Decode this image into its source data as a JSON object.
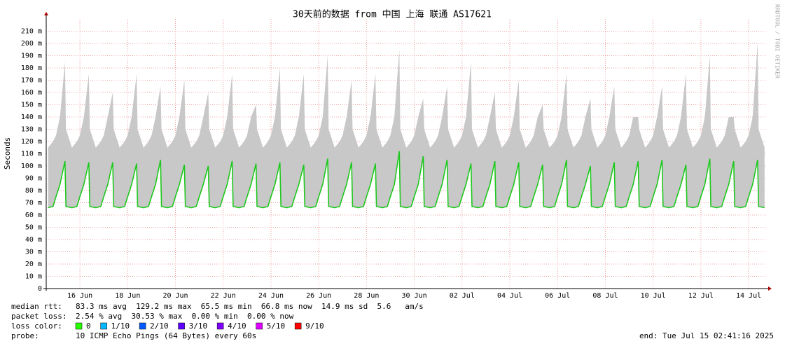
{
  "chart_data": {
    "type": "line",
    "title": "30天前的数据 from 中国 上海 联通 AS17621",
    "y_label": "Seconds",
    "side_text": "RRDTOOL / TOBI OETIKER",
    "xlim": [
      "2025-06-14 14:10",
      "2025-07-14 16:50"
    ],
    "ylim": [
      0,
      220
    ],
    "grid": true,
    "yticks": [
      0,
      {
        "value": 10,
        "label": "10 m"
      },
      {
        "value": 20,
        "label": "20 m"
      },
      {
        "value": 30,
        "label": "30 m"
      },
      {
        "value": 40,
        "label": "40 m"
      },
      {
        "value": 50,
        "label": "50 m"
      },
      {
        "value": 60,
        "label": "60 m"
      },
      {
        "value": 70,
        "label": "70 m"
      },
      {
        "value": 80,
        "label": "80 m"
      },
      {
        "value": 90,
        "label": "90 m"
      },
      {
        "value": 100,
        "label": "100 m"
      },
      {
        "value": 110,
        "label": "110 m"
      },
      {
        "value": 120,
        "label": "120 m"
      },
      {
        "value": 130,
        "label": "130 m"
      },
      {
        "value": 140,
        "label": "140 m"
      },
      {
        "value": 150,
        "label": "150 m"
      },
      {
        "value": 160,
        "label": "160 m"
      },
      {
        "value": 170,
        "label": "170 m"
      },
      {
        "value": 180,
        "label": "180 m"
      },
      {
        "value": 190,
        "label": "190 m"
      },
      {
        "value": 200,
        "label": "200 m"
      },
      {
        "value": 210,
        "label": "210 m"
      }
    ],
    "xticks": [
      {
        "value": "2025-06-16 00:00",
        "label": "16 Jun"
      },
      {
        "value": "2025-06-18 00:00",
        "label": "18 Jun"
      },
      {
        "value": "2025-06-20 00:00",
        "label": "20 Jun"
      },
      {
        "value": "2025-06-22 00:00",
        "label": "22 Jun"
      },
      {
        "value": "2025-06-24 00:00",
        "label": "24 Jun"
      },
      {
        "value": "2025-06-26 00:00",
        "label": "26 Jun"
      },
      {
        "value": "2025-06-28 00:00",
        "label": "28 Jun"
      },
      {
        "value": "2025-06-30 00:00",
        "label": "30 Jun"
      },
      {
        "value": "2025-07-02 00:00",
        "label": "02 Jul"
      },
      {
        "value": "2025-07-04 00:00",
        "label": "04 Jul"
      },
      {
        "value": "2025-07-06 00:00",
        "label": "06 Jul"
      },
      {
        "value": "2025-07-08 00:00",
        "label": "08 Jul"
      },
      {
        "value": "2025-07-10 00:00",
        "label": "10 Jul"
      },
      {
        "value": "2025-07-12 00:00",
        "label": "12 Jul"
      },
      {
        "value": "2025-07-14 00:00",
        "label": "14 Jul"
      }
    ],
    "x": [
      "2025-06-14 16:00",
      "2025-06-14 21:00",
      "2025-06-15 00:00",
      "2025-06-15 04:00",
      "2025-06-15 09:00",
      "2025-06-15 10:00",
      "2025-06-15 16:00",
      "2025-06-15 21:00",
      "2025-06-16 00:00",
      "2025-06-16 04:00",
      "2025-06-16 09:00",
      "2025-06-16 10:00",
      "2025-06-16 16:00",
      "2025-06-16 21:00",
      "2025-06-17 00:00",
      "2025-06-17 04:00",
      "2025-06-17 09:00",
      "2025-06-17 10:00",
      "2025-06-17 16:00",
      "2025-06-17 21:00",
      "2025-06-18 00:00",
      "2025-06-18 04:00",
      "2025-06-18 09:00",
      "2025-06-18 10:00",
      "2025-06-18 16:00",
      "2025-06-18 21:00",
      "2025-06-19 00:00",
      "2025-06-19 04:00",
      "2025-06-19 09:00",
      "2025-06-19 10:00",
      "2025-06-19 16:00",
      "2025-06-19 21:00",
      "2025-06-20 00:00",
      "2025-06-20 04:00",
      "2025-06-20 09:00",
      "2025-06-20 10:00",
      "2025-06-20 16:00",
      "2025-06-20 21:00",
      "2025-06-21 00:00",
      "2025-06-21 04:00",
      "2025-06-21 09:00",
      "2025-06-21 10:00",
      "2025-06-21 16:00",
      "2025-06-21 21:00",
      "2025-06-22 00:00",
      "2025-06-22 04:00",
      "2025-06-22 09:00",
      "2025-06-22 10:00",
      "2025-06-22 16:00",
      "2025-06-22 21:00",
      "2025-06-23 00:00",
      "2025-06-23 04:00",
      "2025-06-23 09:00",
      "2025-06-23 10:00",
      "2025-06-23 16:00",
      "2025-06-23 21:00",
      "2025-06-24 00:00",
      "2025-06-24 04:00",
      "2025-06-24 09:00",
      "2025-06-24 10:00",
      "2025-06-24 16:00",
      "2025-06-24 21:00",
      "2025-06-25 00:00",
      "2025-06-25 04:00",
      "2025-06-25 09:00",
      "2025-06-25 10:00",
      "2025-06-25 16:00",
      "2025-06-25 21:00",
      "2025-06-26 00:00",
      "2025-06-26 04:00",
      "2025-06-26 09:00",
      "2025-06-26 10:00",
      "2025-06-26 16:00",
      "2025-06-26 21:00",
      "2025-06-27 00:00",
      "2025-06-27 04:00",
      "2025-06-27 09:00",
      "2025-06-27 10:00",
      "2025-06-27 16:00",
      "2025-06-27 21:00",
      "2025-06-28 00:00",
      "2025-06-28 04:00",
      "2025-06-28 09:00",
      "2025-06-28 10:00",
      "2025-06-28 16:00",
      "2025-06-28 21:00",
      "2025-06-29 00:00",
      "2025-06-29 04:00",
      "2025-06-29 09:00",
      "2025-06-29 10:00",
      "2025-06-29 16:00",
      "2025-06-29 21:00",
      "2025-06-30 00:00",
      "2025-06-30 04:00",
      "2025-06-30 09:00",
      "2025-06-30 10:00",
      "2025-06-30 16:00",
      "2025-06-30 21:00",
      "2025-07-01 00:00",
      "2025-07-01 04:00",
      "2025-07-01 09:00",
      "2025-07-01 10:00",
      "2025-07-01 16:00",
      "2025-07-01 21:00",
      "2025-07-02 00:00",
      "2025-07-02 04:00",
      "2025-07-02 09:00",
      "2025-07-02 10:00",
      "2025-07-02 16:00",
      "2025-07-02 21:00",
      "2025-07-03 00:00",
      "2025-07-03 04:00",
      "2025-07-03 09:00",
      "2025-07-03 10:00",
      "2025-07-03 16:00",
      "2025-07-03 21:00",
      "2025-07-04 00:00",
      "2025-07-04 04:00",
      "2025-07-04 09:00",
      "2025-07-04 10:00",
      "2025-07-04 16:00",
      "2025-07-04 21:00",
      "2025-07-05 00:00",
      "2025-07-05 04:00",
      "2025-07-05 09:00",
      "2025-07-05 10:00",
      "2025-07-05 16:00",
      "2025-07-05 21:00",
      "2025-07-06 00:00",
      "2025-07-06 04:00",
      "2025-07-06 09:00",
      "2025-07-06 10:00",
      "2025-07-06 16:00",
      "2025-07-06 21:00",
      "2025-07-07 00:00",
      "2025-07-07 04:00",
      "2025-07-07 09:00",
      "2025-07-07 10:00",
      "2025-07-07 16:00",
      "2025-07-07 21:00",
      "2025-07-08 00:00",
      "2025-07-08 04:00",
      "2025-07-08 09:00",
      "2025-07-08 10:00",
      "2025-07-08 16:00",
      "2025-07-08 21:00",
      "2025-07-09 00:00",
      "2025-07-09 04:00",
      "2025-07-09 09:00",
      "2025-07-09 10:00",
      "2025-07-09 16:00",
      "2025-07-09 21:00",
      "2025-07-10 00:00",
      "2025-07-10 04:00",
      "2025-07-10 09:00",
      "2025-07-10 10:00",
      "2025-07-10 16:00",
      "2025-07-10 21:00",
      "2025-07-11 00:00",
      "2025-07-11 04:00",
      "2025-07-11 09:00",
      "2025-07-11 10:00",
      "2025-07-11 16:00",
      "2025-07-11 21:00",
      "2025-07-12 00:00",
      "2025-07-12 04:00",
      "2025-07-12 09:00",
      "2025-07-12 10:00",
      "2025-07-12 16:00",
      "2025-07-12 21:00",
      "2025-07-13 00:00",
      "2025-07-13 04:00",
      "2025-07-13 09:00",
      "2025-07-13 10:00",
      "2025-07-13 16:00",
      "2025-07-13 21:00",
      "2025-07-14 00:00",
      "2025-07-14 04:00",
      "2025-07-14 09:00",
      "2025-07-14 10:00",
      "2025-07-14 16:00"
    ],
    "series": [
      {
        "color": "#c8c8c8",
        "values": [
          115,
          120,
          125,
          140,
          185,
          130,
          115,
          120,
          125,
          140,
          175,
          130,
          115,
          120,
          125,
          140,
          160,
          130,
          115,
          120,
          125,
          140,
          175,
          130,
          115,
          120,
          125,
          140,
          165,
          130,
          115,
          120,
          125,
          140,
          170,
          130,
          115,
          120,
          125,
          140,
          160,
          130,
          115,
          120,
          125,
          140,
          175,
          130,
          115,
          120,
          125,
          140,
          150,
          130,
          115,
          120,
          125,
          140,
          180,
          130,
          115,
          120,
          125,
          140,
          175,
          130,
          115,
          120,
          125,
          140,
          190,
          130,
          115,
          120,
          125,
          140,
          170,
          130,
          115,
          120,
          125,
          140,
          175,
          130,
          115,
          120,
          125,
          140,
          195,
          130,
          115,
          120,
          125,
          140,
          155,
          130,
          115,
          120,
          125,
          140,
          165,
          130,
          115,
          120,
          125,
          140,
          185,
          130,
          115,
          120,
          125,
          140,
          160,
          130,
          115,
          120,
          125,
          140,
          170,
          130,
          115,
          120,
          125,
          140,
          150,
          130,
          115,
          120,
          125,
          140,
          175,
          130,
          115,
          120,
          125,
          140,
          155,
          130,
          115,
          120,
          125,
          140,
          165,
          130,
          115,
          120,
          125,
          140,
          140,
          130,
          115,
          120,
          125,
          140,
          165,
          130,
          115,
          120,
          125,
          140,
          175,
          130,
          115,
          120,
          125,
          140,
          190,
          130,
          115,
          120,
          125,
          140,
          140,
          130,
          115,
          120,
          125,
          140,
          200,
          130,
          115
        ]
      },
      {
        "color": "#1ec81e",
        "values": [
          66,
          67,
          75,
          85,
          104,
          67,
          66,
          67,
          75,
          85,
          103,
          67,
          66,
          67,
          75,
          85,
          103,
          67,
          66,
          67,
          75,
          85,
          102,
          67,
          66,
          67,
          75,
          85,
          105,
          67,
          66,
          67,
          75,
          85,
          101,
          67,
          66,
          67,
          75,
          85,
          100,
          67,
          66,
          67,
          75,
          85,
          104,
          67,
          66,
          67,
          75,
          85,
          102,
          67,
          66,
          67,
          75,
          85,
          103,
          67,
          66,
          67,
          75,
          85,
          101,
          67,
          66,
          67,
          75,
          85,
          106,
          67,
          66,
          67,
          75,
          85,
          103,
          67,
          66,
          67,
          75,
          85,
          102,
          67,
          66,
          67,
          75,
          85,
          112,
          67,
          66,
          67,
          75,
          85,
          108,
          67,
          66,
          67,
          75,
          85,
          105,
          67,
          66,
          67,
          75,
          85,
          102,
          67,
          66,
          67,
          75,
          85,
          104,
          67,
          66,
          67,
          75,
          85,
          103,
          67,
          66,
          67,
          75,
          85,
          101,
          67,
          66,
          67,
          75,
          85,
          105,
          67,
          66,
          67,
          75,
          85,
          100,
          67,
          66,
          67,
          75,
          85,
          103,
          67,
          66,
          67,
          75,
          85,
          104,
          67,
          66,
          67,
          75,
          85,
          105,
          67,
          66,
          67,
          75,
          85,
          101,
          67,
          66,
          67,
          75,
          85,
          106,
          67,
          66,
          67,
          75,
          85,
          104,
          67,
          66,
          67,
          75,
          85,
          105,
          67,
          66
        ]
      }
    ],
    "stats": [
      {
        "label": "median rtt:",
        "text": "83.3 ms avg  129.2 ms max  65.5 ms min  66.8 ms now  14.9 ms sd  5.6   am/s"
      },
      {
        "label": "packet loss:",
        "text": "2.54 % avg  30.53 % max  0.00 % min  0.00 % now"
      }
    ],
    "loss_label": "loss color:",
    "loss_colors": [
      {
        "label": "0",
        "color": "#26ff00"
      },
      {
        "label": "1/10",
        "color": "#00b8ff"
      },
      {
        "label": "2/10",
        "color": "#0059ff"
      },
      {
        "label": "3/10",
        "color": "#5e00ff"
      },
      {
        "label": "4/10",
        "color": "#7e00ff"
      },
      {
        "label": "5/10",
        "color": "#dd00ff"
      },
      {
        "label": "9/10",
        "color": "#ff0000"
      }
    ],
    "probe_label": "probe:",
    "probe": "10 ICMP Echo Pings (64 Bytes) every 60s",
    "end": "end: Tue Jul 15 02:41:16 2025"
  }
}
